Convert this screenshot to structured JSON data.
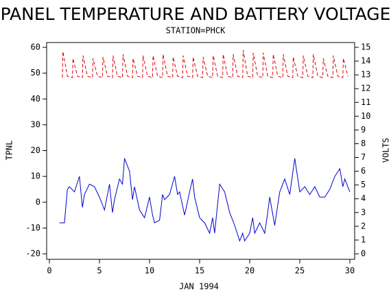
{
  "chart_data": {
    "type": "line",
    "title": "PANEL TEMPERATURE AND BATTERY VOLTAGE",
    "subtitle": "STATION=PHCK",
    "x_label": "JAN 1994",
    "y_label": "TPNL",
    "y2_label": "VOLTS",
    "xlim": [
      0,
      30
    ],
    "xticks": [
      0,
      5,
      10,
      15,
      20,
      25,
      30
    ],
    "ylim": [
      -20,
      60
    ],
    "yticks": [
      -20,
      -10,
      0,
      10,
      20,
      30,
      40,
      50,
      60
    ],
    "y2lim": [
      0,
      15
    ],
    "y2ticks": [
      0,
      1,
      2,
      3,
      4,
      5,
      6,
      7,
      8,
      9,
      10,
      11,
      12,
      13,
      14,
      15
    ],
    "series": [
      {
        "name": "TPNL",
        "color": "#0000cc",
        "dashed": false,
        "x": [
          1.0,
          1.5,
          1.8,
          2.0,
          2.5,
          3.0,
          3.3,
          3.5,
          4.0,
          4.5,
          5.0,
          5.5,
          6.0,
          6.3,
          6.5,
          7.0,
          7.3,
          7.5,
          8.0,
          8.3,
          8.5,
          9.0,
          9.5,
          10.0,
          10.3,
          10.5,
          11.0,
          11.3,
          11.5,
          12.0,
          12.5,
          12.8,
          13.0,
          13.5,
          14.0,
          14.3,
          14.5,
          15.0,
          15.5,
          16.0,
          16.3,
          16.5,
          17.0,
          17.5,
          18.0,
          18.5,
          19.0,
          19.3,
          19.5,
          20.0,
          20.3,
          20.5,
          21.0,
          21.5,
          21.8,
          22.0,
          22.5,
          23.0,
          23.5,
          24.0,
          24.5,
          25.0,
          25.5,
          26.0,
          26.5,
          27.0,
          27.5,
          28.0,
          28.5,
          29.0,
          29.3,
          29.5,
          30.0
        ],
        "values": [
          -8,
          -8,
          5,
          6,
          4,
          10,
          -2,
          3,
          7,
          6,
          2,
          -3,
          7,
          -4,
          1,
          9,
          7,
          17,
          12,
          1,
          6,
          -3,
          -6,
          2,
          -5,
          -8,
          -7,
          3,
          1,
          3,
          10,
          3,
          4,
          -5,
          4,
          9,
          2,
          -6,
          -8,
          -12,
          -6,
          -12,
          7,
          4,
          -4,
          -9,
          -15,
          -12,
          -15,
          -12,
          -6,
          -12,
          -8,
          -12,
          -4,
          2,
          -9,
          4,
          9,
          3,
          17,
          4,
          6,
          3,
          6,
          2,
          2,
          5,
          10,
          13,
          6,
          9,
          4
        ]
      },
      {
        "name": "VOLTS",
        "color": "#dd0000",
        "dashed": true,
        "axis": "y2",
        "x": [
          1.3,
          1.35,
          1.8,
          2.3,
          2.35,
          2.8,
          3.3,
          3.35,
          3.8,
          4.3,
          4.35,
          4.8,
          5.3,
          5.35,
          5.8,
          6.3,
          6.35,
          6.8,
          7.3,
          7.35,
          7.8,
          8.3,
          8.35,
          8.8,
          9.3,
          9.35,
          9.8,
          10.3,
          10.35,
          10.8,
          11.3,
          11.35,
          11.8,
          12.3,
          12.35,
          12.8,
          13.3,
          13.35,
          13.8,
          14.3,
          14.35,
          14.8,
          15.3,
          15.35,
          15.8,
          16.3,
          16.35,
          16.8,
          17.3,
          17.35,
          17.8,
          18.3,
          18.35,
          18.8,
          19.3,
          19.35,
          19.8,
          20.3,
          20.35,
          20.8,
          21.3,
          21.35,
          21.8,
          22.3,
          22.35,
          22.8,
          23.3,
          23.35,
          23.8,
          24.3,
          24.35,
          24.8,
          25.3,
          25.35,
          25.8,
          26.3,
          26.35,
          26.8,
          27.3,
          27.35,
          27.8,
          28.3,
          28.35,
          28.8,
          29.3,
          29.35,
          29.8
        ],
        "values": [
          12.8,
          14.7,
          12.9,
          12.8,
          14.2,
          12.9,
          12.8,
          14.4,
          12.9,
          12.8,
          14.2,
          12.9,
          12.8,
          14.3,
          12.9,
          12.8,
          14.4,
          12.9,
          12.8,
          14.5,
          12.9,
          12.8,
          14.2,
          12.9,
          12.8,
          14.4,
          12.9,
          12.8,
          14.4,
          12.9,
          12.8,
          14.5,
          12.9,
          12.8,
          14.3,
          12.9,
          12.8,
          14.4,
          12.9,
          12.8,
          14.3,
          12.9,
          12.8,
          14.3,
          12.9,
          12.8,
          14.4,
          12.9,
          12.8,
          14.5,
          12.9,
          12.8,
          14.5,
          12.9,
          12.8,
          14.8,
          12.9,
          12.8,
          14.6,
          12.9,
          12.8,
          14.6,
          12.9,
          12.8,
          14.5,
          12.9,
          12.8,
          14.5,
          12.9,
          12.8,
          14.3,
          12.9,
          12.8,
          14.4,
          12.9,
          12.8,
          14.5,
          12.9,
          12.8,
          14.2,
          12.9,
          12.8,
          14.4,
          12.9,
          12.8,
          14.2,
          12.9
        ]
      }
    ]
  }
}
